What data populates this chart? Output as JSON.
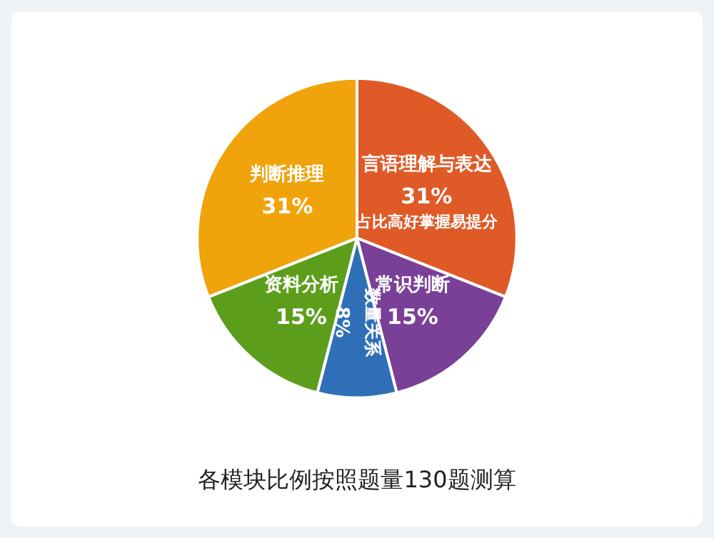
{
  "chart_data": {
    "type": "pie",
    "categories": [
      "言语理解与表达",
      "常识判断",
      "数量关系",
      "资料分析",
      "判断推理"
    ],
    "values": [
      31,
      15,
      8,
      15,
      31
    ],
    "colors": [
      "#df5a27",
      "#7a3f97",
      "#2f6fb7",
      "#5c9e1b",
      "#f0a30b"
    ],
    "value_labels": [
      "31%",
      "15%",
      "8%",
      "15%",
      "31%"
    ],
    "annotations": [
      "占比高好掌握易提分",
      "各模块比例按照题量130题测算"
    ],
    "legend": false
  }
}
